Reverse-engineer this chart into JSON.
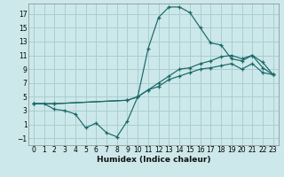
{
  "xlabel": "Humidex (Indice chaleur)",
  "bg_color": "#cce8ea",
  "grid_color": "#aacece",
  "line_color": "#1a6868",
  "xlim": [
    -0.5,
    23.5
  ],
  "ylim": [
    -2.0,
    18.5
  ],
  "xticks": [
    0,
    1,
    2,
    3,
    4,
    5,
    6,
    7,
    8,
    9,
    10,
    11,
    12,
    13,
    14,
    15,
    16,
    17,
    18,
    19,
    20,
    21,
    22,
    23
  ],
  "yticks": [
    -1,
    1,
    3,
    5,
    7,
    9,
    11,
    13,
    15,
    17
  ],
  "line1_x": [
    0,
    1,
    2,
    3,
    4,
    5,
    6,
    7,
    8,
    9,
    10,
    11,
    12,
    13,
    14,
    15,
    16,
    17,
    18,
    19,
    20,
    21,
    22,
    23
  ],
  "line1_y": [
    4.0,
    4.0,
    3.2,
    3.0,
    2.5,
    0.5,
    1.2,
    -0.2,
    -0.8,
    1.5,
    5.0,
    12.0,
    16.5,
    18.0,
    18.0,
    17.2,
    15.0,
    12.8,
    12.5,
    10.5,
    10.2,
    11.0,
    9.2,
    8.2
  ],
  "line2_x": [
    0,
    2,
    9,
    10,
    11,
    12,
    13,
    14,
    15,
    16,
    17,
    18,
    19,
    20,
    21,
    22,
    23
  ],
  "line2_y": [
    4.0,
    4.0,
    4.5,
    5.0,
    6.0,
    7.0,
    8.0,
    9.0,
    9.2,
    9.8,
    10.2,
    10.8,
    11.0,
    10.5,
    11.0,
    10.0,
    8.2
  ],
  "line3_x": [
    0,
    2,
    9,
    10,
    11,
    12,
    13,
    14,
    15,
    16,
    17,
    18,
    19,
    20,
    21,
    22,
    23
  ],
  "line3_y": [
    4.0,
    4.0,
    4.5,
    5.0,
    6.0,
    6.5,
    7.5,
    8.0,
    8.5,
    9.0,
    9.2,
    9.5,
    9.8,
    9.0,
    9.8,
    8.5,
    8.2
  ]
}
